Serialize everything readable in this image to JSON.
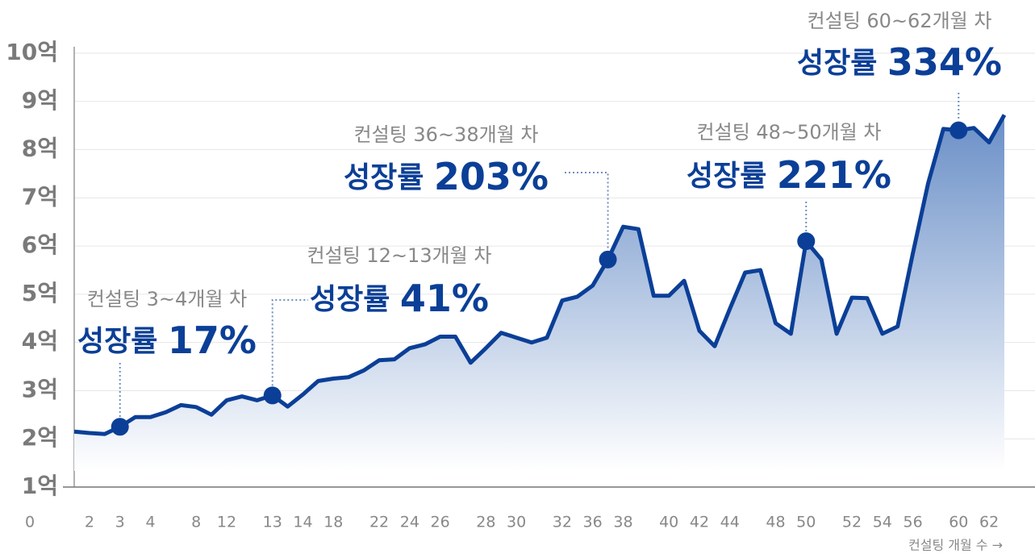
{
  "chart_data": {
    "type": "area",
    "x_axis_label": "컨설팅 개월 수 →",
    "x_origin_label": "0",
    "categories": [
      null,
      "2",
      null,
      "3",
      null,
      "4",
      null,
      null,
      "8",
      null,
      "12",
      null,
      null,
      "13",
      null,
      "14",
      null,
      "18",
      null,
      null,
      "22",
      null,
      "24",
      null,
      "26",
      null,
      null,
      "28",
      null,
      "30",
      null,
      null,
      "32",
      null,
      "36",
      null,
      "38",
      null,
      null,
      "40",
      null,
      "42",
      null,
      "44",
      null,
      null,
      "48",
      null,
      "50",
      null,
      null,
      "52",
      null,
      "54",
      null,
      "56",
      null,
      null,
      "60",
      null,
      "62",
      null
    ],
    "values": [
      2.15,
      2.12,
      2.1,
      2.25,
      2.45,
      2.45,
      2.55,
      2.7,
      2.66,
      2.5,
      2.8,
      2.88,
      2.8,
      2.9,
      2.67,
      2.92,
      3.2,
      3.25,
      3.28,
      3.42,
      3.63,
      3.65,
      3.88,
      3.96,
      4.12,
      4.12,
      3.58,
      3.88,
      4.2,
      4.1,
      4.0,
      4.1,
      4.87,
      4.95,
      5.18,
      5.72,
      6.4,
      6.35,
      4.97,
      4.97,
      5.28,
      4.24,
      3.92,
      4.7,
      5.45,
      5.5,
      4.4,
      4.18,
      6.1,
      5.72,
      4.18,
      4.93,
      4.92,
      4.18,
      4.33,
      5.85,
      7.3,
      8.43,
      8.4,
      8.45,
      8.15,
      8.72
    ],
    "color": "#0b3f97",
    "ylim": [
      1,
      10
    ],
    "yticks": [
      {
        "value": 1,
        "label": "1억"
      },
      {
        "value": 2,
        "label": "2억"
      },
      {
        "value": 3,
        "label": "3억"
      },
      {
        "value": 4,
        "label": "4억"
      },
      {
        "value": 5,
        "label": "5억"
      },
      {
        "value": 6,
        "label": "6억"
      },
      {
        "value": 7,
        "label": "7억"
      },
      {
        "value": 8,
        "label": "8억"
      },
      {
        "value": 9,
        "label": "9억"
      },
      {
        "value": 10,
        "label": "10억"
      }
    ],
    "grid": true,
    "annotations": [
      {
        "period": "컨설팅 3~4개월 차",
        "title": "성장률",
        "growth": {
          "value": 17,
          "label": "17%"
        }
      },
      {
        "period": "컨설팅 12~13개월 차",
        "title": "성장률",
        "growth": {
          "value": 41,
          "label": "41%"
        }
      },
      {
        "period": "컨설팅 36~38개월 차",
        "title": "성장률",
        "growth": {
          "value": 203,
          "label": "203%"
        }
      },
      {
        "period": "컨설팅 48~50개월 차",
        "title": "성장률",
        "growth": {
          "value": 221,
          "label": "221%"
        }
      },
      {
        "period": "컨설팅 60~62개월 차",
        "title": "성장률",
        "growth": {
          "value": 334,
          "label": "334%"
        }
      }
    ]
  }
}
